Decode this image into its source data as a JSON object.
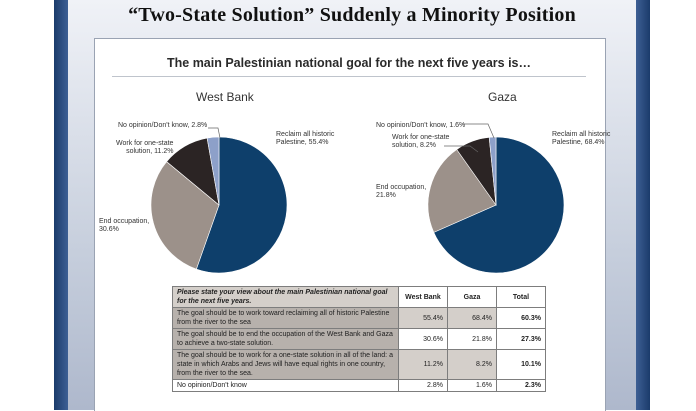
{
  "slide_title": "“Two-State Solution” Suddenly a Minority Position",
  "colors": {
    "reclaim": "#0e3f6b",
    "end_occupation": "#9c918a",
    "one_state": "#2b2424",
    "no_opinion": "#8da0c9",
    "side_bar": "#2a4a7c"
  },
  "chart_data": [
    {
      "type": "pie",
      "title": "West Bank",
      "overall_title": "The main Palestinian national goal for the next five years is…",
      "slices": [
        {
          "label": "Reclaim all historic Palestine, 55.4%",
          "value": 55.4,
          "color": "#0e3f6b"
        },
        {
          "label": "End occupation, 30.6%",
          "value": 30.6,
          "color": "#9c918a"
        },
        {
          "label": "Work for one-state solution, 11.2%",
          "value": 11.2,
          "color": "#2b2424"
        },
        {
          "label": "No opinion/Don't know, 2.8%",
          "value": 2.8,
          "color": "#8da0c9"
        }
      ]
    },
    {
      "type": "pie",
      "title": "Gaza",
      "slices": [
        {
          "label": "Reclaim all historic Palestine, 68.4%",
          "value": 68.4,
          "color": "#0e3f6b"
        },
        {
          "label": "End occupation, 21.8%",
          "value": 21.8,
          "color": "#9c918a"
        },
        {
          "label": "Work for one-state solution, 8.2%",
          "value": 8.2,
          "color": "#2b2424"
        },
        {
          "label": "No opinion/Don't know, 1.6%",
          "value": 1.6,
          "color": "#8da0c9"
        }
      ]
    },
    {
      "type": "table",
      "question": "Please state your view about the main Palestinian national goal for the next five years.",
      "columns": [
        "West Bank",
        "Gaza",
        "Total"
      ],
      "rows": [
        {
          "answer": "The goal should be to work toward reclaiming all of historic Palestine from the river to the sea",
          "values": [
            "55.4%",
            "68.4%",
            "60.3%"
          ]
        },
        {
          "answer": "The goal should be to end the occupation of the West Bank and Gaza to achieve a two-state solution.",
          "values": [
            "30.6%",
            "21.8%",
            "27.3%"
          ]
        },
        {
          "answer": "The goal should be to work for a one-state solution in all of the land: a state in which Arabs and Jews will have equal rights in one country, from the river to the sea.",
          "values": [
            "11.2%",
            "8.2%",
            "10.1%"
          ]
        },
        {
          "answer": "No opinion/Don't know",
          "values": [
            "2.8%",
            "1.6%",
            "2.3%"
          ]
        }
      ]
    }
  ],
  "pie_labels": {
    "wb": {
      "reclaim": [
        "Reclaim all historic",
        "Palestine, 55.4%"
      ],
      "end": [
        "End occupation,",
        "30.6%"
      ],
      "one": [
        "Work for one-state",
        "solution, 11.2%"
      ],
      "none": [
        "No opinion/Don't know, 2.8%"
      ]
    },
    "gz": {
      "reclaim": [
        "Reclaim all historic",
        "Palestine, 68.4%"
      ],
      "end": [
        "End occupation,",
        "21.8%"
      ],
      "one": [
        "Work for one-state",
        "solution, 8.2%"
      ],
      "none": [
        "No opinion/Don't know, 1.6%"
      ]
    }
  }
}
